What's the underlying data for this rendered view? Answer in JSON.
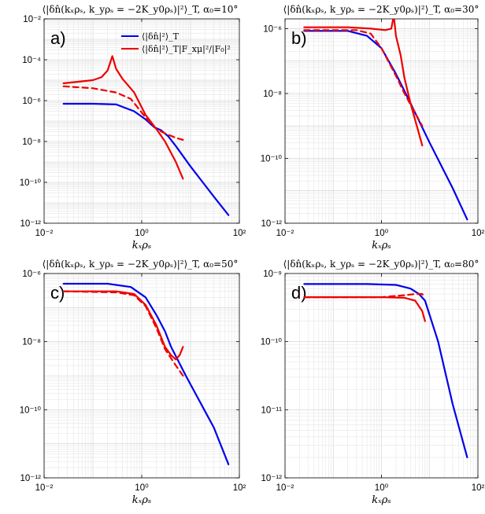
{
  "colors": {
    "blue": "#0000ee",
    "red": "#ee0000",
    "grid": "#e6e6e6",
    "axis": "#000000"
  },
  "chart_data": [
    {
      "type": "line",
      "label": "a)",
      "title": "⟨|δn̂(kₓρₛ, k_yρₛ = −2K_y0ρₛ)|²⟩_T, α₀=10°",
      "xlabel": "kₓρₛ",
      "xscale": "log",
      "yscale": "log",
      "xlim": [
        0.01,
        100
      ],
      "ylim": [
        1e-12,
        0.01
      ],
      "xticks": [
        "10⁻²",
        "10⁰",
        "10²"
      ],
      "yticks": [
        "10⁻¹²",
        "10⁻¹⁰",
        "10⁻⁸",
        "10⁻⁶",
        "10⁻⁴",
        "10⁻²"
      ],
      "legend": [
        "⟨|δn̂|²⟩_T",
        "⟨|δn̂|²⟩_T|F_xμ|²/|F₀|²"
      ],
      "series": [
        {
          "name": "blue",
          "color": "blue",
          "dash": false,
          "points": [
            [
              0.025,
              7e-07
            ],
            [
              0.1,
              7e-07
            ],
            [
              0.3,
              6.5e-07
            ],
            [
              0.7,
              3e-07
            ],
            [
              1.2,
              1.2e-07
            ],
            [
              1.8,
              5e-08
            ],
            [
              2.5,
              3.5e-08
            ],
            [
              3.5,
              1.8e-08
            ],
            [
              5,
              6e-09
            ],
            [
              10,
              6e-10
            ],
            [
              30,
              2e-11
            ],
            [
              60,
              2.5e-12
            ]
          ]
        },
        {
          "name": "red solid",
          "color": "red",
          "dash": false,
          "points": [
            [
              0.025,
              7e-06
            ],
            [
              0.1,
              1e-05
            ],
            [
              0.15,
              1.4e-05
            ],
            [
              0.2,
              3e-05
            ],
            [
              0.25,
              0.00015
            ],
            [
              0.3,
              3.5e-05
            ],
            [
              0.4,
              1.2e-05
            ],
            [
              0.7,
              2.5e-06
            ],
            [
              1.2,
              2e-07
            ],
            [
              2,
              4e-08
            ],
            [
              3,
              1e-08
            ],
            [
              5,
              1e-09
            ],
            [
              7,
              1.5e-10
            ]
          ]
        },
        {
          "name": "red dashed",
          "color": "red",
          "dash": true,
          "points": [
            [
              0.025,
              5e-06
            ],
            [
              0.1,
              4e-06
            ],
            [
              0.3,
              2.5e-06
            ],
            [
              0.6,
              1.2e-06
            ],
            [
              1.2,
              1.5e-07
            ],
            [
              2,
              4e-08
            ],
            [
              3,
              2.5e-08
            ],
            [
              5,
              1.5e-08
            ],
            [
              7,
              1.2e-08
            ]
          ]
        }
      ]
    },
    {
      "type": "line",
      "label": "b)",
      "title": "⟨|δn̂(kₓρₛ, k_yρₛ = −2K_y0ρₛ)|²⟩_T, α₀=30°",
      "xlabel": "kₓρₛ",
      "xscale": "log",
      "yscale": "log",
      "xlim": [
        0.01,
        100
      ],
      "ylim": [
        1e-12,
        2e-06
      ],
      "xticks": [
        "10⁻²",
        "10⁰",
        "10²"
      ],
      "yticks": [
        "10⁻¹²",
        "10⁻¹⁰",
        "10⁻⁸",
        "10⁻⁶"
      ],
      "series": [
        {
          "name": "blue",
          "color": "blue",
          "dash": false,
          "points": [
            [
              0.025,
              8.5e-07
            ],
            [
              0.2,
              8.5e-07
            ],
            [
              0.5,
              6e-07
            ],
            [
              1,
              2.5e-07
            ],
            [
              2,
              4e-08
            ],
            [
              3,
              1.2e-08
            ],
            [
              4,
              5e-09
            ],
            [
              10,
              3e-10
            ],
            [
              30,
              1.2e-11
            ],
            [
              60,
              1.3e-12
            ]
          ]
        },
        {
          "name": "red solid",
          "color": "red",
          "dash": false,
          "points": [
            [
              0.025,
              1.1e-06
            ],
            [
              0.2,
              1.1e-06
            ],
            [
              0.6,
              1e-06
            ],
            [
              1.2,
              9e-07
            ],
            [
              1.6,
              1e-06
            ],
            [
              1.8,
              2.5e-06
            ],
            [
              2,
              6e-07
            ],
            [
              2.5,
              1.5e-07
            ],
            [
              3,
              3e-08
            ],
            [
              4,
              5e-09
            ],
            [
              7,
              2.5e-10
            ]
          ]
        },
        {
          "name": "red dashed",
          "color": "red",
          "dash": true,
          "points": [
            [
              0.025,
              9e-07
            ],
            [
              0.3,
              9e-07
            ],
            [
              0.6,
              7e-07
            ],
            [
              1,
              2.5e-07
            ],
            [
              2,
              3.5e-08
            ],
            [
              3,
              1e-08
            ],
            [
              5,
              2.5e-09
            ],
            [
              7,
              1e-09
            ]
          ]
        }
      ]
    },
    {
      "type": "line",
      "label": "c)",
      "title": "⟨|δn̂(kₓρₛ, k_yρₛ = −2K_y0ρₛ)|²⟩_T, α₀=50°",
      "xlabel": "kₓρₛ",
      "xscale": "log",
      "yscale": "log",
      "xlim": [
        0.01,
        100
      ],
      "ylim": [
        1e-12,
        1e-06
      ],
      "xticks": [
        "10⁻²",
        "10⁰",
        "10²"
      ],
      "yticks": [
        "10⁻¹²",
        "10⁻¹⁰",
        "10⁻⁸",
        "10⁻⁶"
      ],
      "series": [
        {
          "name": "blue",
          "color": "blue",
          "dash": false,
          "points": [
            [
              0.025,
              5e-07
            ],
            [
              0.2,
              5e-07
            ],
            [
              0.6,
              4e-07
            ],
            [
              1.2,
              2e-07
            ],
            [
              2,
              6e-08
            ],
            [
              3,
              2e-08
            ],
            [
              4,
              7e-09
            ],
            [
              8,
              1e-09
            ],
            [
              30,
              3e-11
            ],
            [
              60,
              2.5e-12
            ]
          ]
        },
        {
          "name": "red solid",
          "color": "red",
          "dash": false,
          "points": [
            [
              0.025,
              3e-07
            ],
            [
              0.3,
              3e-07
            ],
            [
              0.7,
              2.5e-07
            ],
            [
              1.2,
              1.2e-07
            ],
            [
              2,
              3e-08
            ],
            [
              3,
              7e-09
            ],
            [
              4,
              4e-09
            ],
            [
              5,
              3e-09
            ],
            [
              6,
              4e-09
            ],
            [
              7,
              7e-09
            ]
          ]
        },
        {
          "name": "red dashed",
          "color": "red",
          "dash": true,
          "points": [
            [
              0.025,
              3e-07
            ],
            [
              0.3,
              2.8e-07
            ],
            [
              0.7,
              2.3e-07
            ],
            [
              1.2,
              1.1e-07
            ],
            [
              2,
              2.5e-08
            ],
            [
              3,
              6e-09
            ],
            [
              5,
              2e-09
            ],
            [
              7,
              1e-09
            ]
          ]
        }
      ]
    },
    {
      "type": "line",
      "label": "d)",
      "title": "⟨|δn̂(kₓρₛ, k_yρₛ = −2K_y0ρₛ)|²⟩_T, α₀=80°",
      "xlabel": "kₓρₛ",
      "xscale": "log",
      "yscale": "log",
      "xlim": [
        0.01,
        100
      ],
      "ylim": [
        1e-12,
        1e-09
      ],
      "xticks": [
        "10⁻²",
        "10⁰",
        "10²"
      ],
      "yticks": [
        "10⁻¹²",
        "10⁻¹¹",
        "10⁻¹⁰",
        "10⁻⁹"
      ],
      "series": [
        {
          "name": "blue",
          "color": "blue",
          "dash": false,
          "points": [
            [
              0.025,
              7e-10
            ],
            [
              0.5,
              7e-10
            ],
            [
              2,
              6.8e-10
            ],
            [
              4,
              6e-10
            ],
            [
              6,
              5e-10
            ],
            [
              8,
              4e-10
            ],
            [
              15,
              1e-10
            ],
            [
              30,
              1.2e-11
            ],
            [
              60,
              2e-12
            ]
          ]
        },
        {
          "name": "red solid",
          "color": "red",
          "dash": false,
          "points": [
            [
              0.025,
              4.5e-10
            ],
            [
              1,
              4.5e-10
            ],
            [
              3,
              4.4e-10
            ],
            [
              5,
              4e-10
            ],
            [
              6,
              3.3e-10
            ],
            [
              7,
              2.8e-10
            ],
            [
              8,
              2e-10
            ]
          ]
        },
        {
          "name": "red dashed",
          "color": "red",
          "dash": true,
          "points": [
            [
              0.025,
              4.5e-10
            ],
            [
              1,
              4.5e-10
            ],
            [
              3,
              4.8e-10
            ],
            [
              5,
              5e-10
            ],
            [
              7,
              5e-10
            ],
            [
              8,
              4.5e-10
            ]
          ]
        }
      ]
    }
  ]
}
